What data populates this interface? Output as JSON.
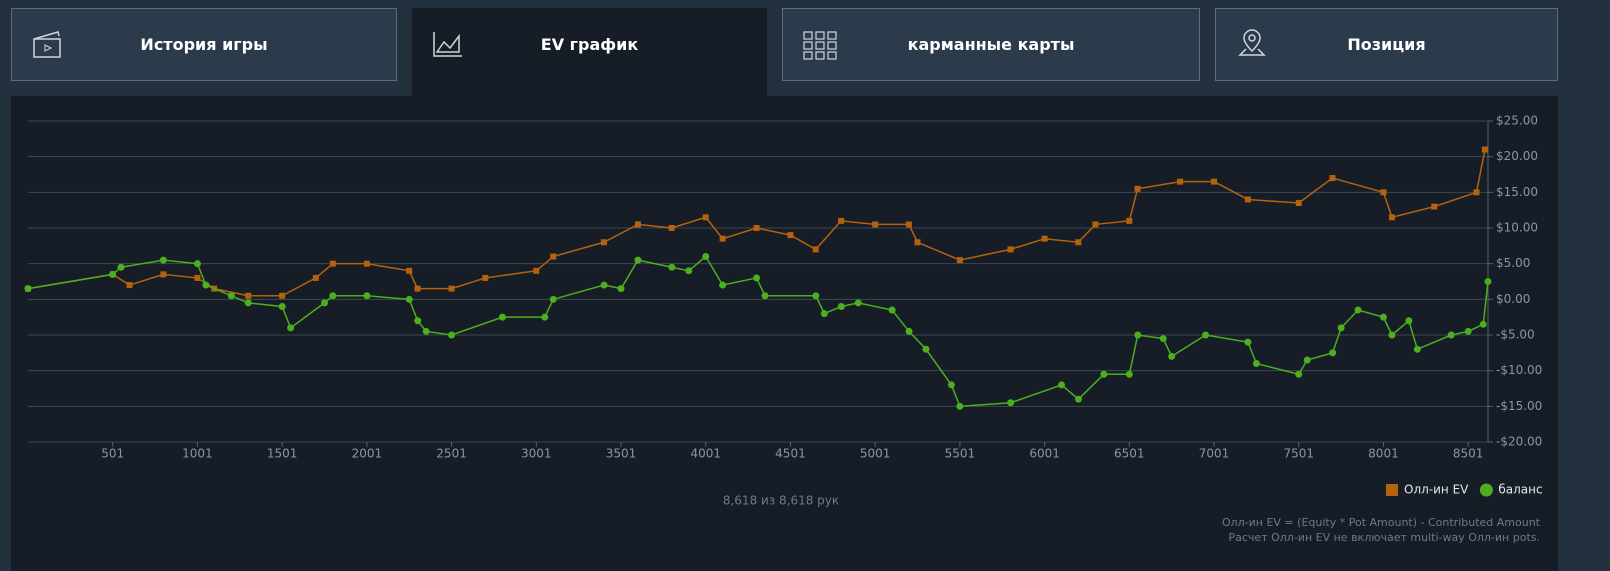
{
  "tabs": [
    {
      "label": "История игры"
    },
    {
      "label": "EV график"
    },
    {
      "label": "карманные карты"
    },
    {
      "label": "Позиция"
    }
  ],
  "chart_data": {
    "type": "line",
    "xlim": [
      1,
      8618
    ],
    "xticks": [
      501,
      1001,
      1501,
      2001,
      2501,
      3001,
      3501,
      4001,
      4501,
      5001,
      5501,
      6001,
      6501,
      7001,
      7501,
      8001,
      8501
    ],
    "ylim": [
      -20,
      25
    ],
    "yticks": [
      {
        "value": 25,
        "label": "$25.00"
      },
      {
        "value": 20,
        "label": "$20.00"
      },
      {
        "value": 15,
        "label": "$15.00"
      },
      {
        "value": 10,
        "label": "$10.00"
      },
      {
        "value": 5,
        "label": "$5.00"
      },
      {
        "value": 0,
        "label": "$0.00"
      },
      {
        "value": -5,
        "label": "-$5.00"
      },
      {
        "value": -10,
        "label": "-$10.00"
      },
      {
        "value": -15,
        "label": "-$15.00"
      },
      {
        "value": -20,
        "label": "-$20.00"
      }
    ],
    "grid": true,
    "legend": "bottom-right",
    "series": [
      {
        "name": "Олл-ин EV",
        "color": "#b5620f",
        "marker": "square",
        "x": [
          1,
          501,
          600,
          800,
          1001,
          1100,
          1301,
          1501,
          1700,
          1800,
          2001,
          2251,
          2300,
          2501,
          2700,
          3001,
          3101,
          3400,
          3601,
          3800,
          4001,
          4101,
          4301,
          4501,
          4650,
          4800,
          5001,
          5200,
          5251,
          5501,
          5800,
          6001,
          6200,
          6301,
          6501,
          6550,
          6801,
          7001,
          7201,
          7501,
          7700,
          8001,
          8051,
          8301,
          8550,
          8600
        ],
        "values": [
          1.5,
          3.5,
          2,
          3.5,
          3,
          1.5,
          0.5,
          0.5,
          3,
          5,
          5,
          4,
          1.5,
          1.5,
          3,
          4,
          6,
          8,
          10.5,
          10,
          11.5,
          8.5,
          10,
          9,
          7,
          11,
          10.5,
          10.5,
          8,
          5.5,
          7,
          8.5,
          8,
          10.5,
          11,
          15.5,
          16.5,
          16.5,
          14,
          13.5,
          17,
          15,
          11.5,
          13,
          15,
          21
        ]
      },
      {
        "name": "баланс",
        "color": "#4caf1e",
        "marker": "circle",
        "x": [
          1,
          501,
          550,
          800,
          1001,
          1051,
          1201,
          1301,
          1501,
          1551,
          1751,
          1800,
          2001,
          2251,
          2301,
          2351,
          2501,
          2801,
          3051,
          3101,
          3401,
          3501,
          3601,
          3801,
          3901,
          4001,
          4101,
          4301,
          4351,
          4651,
          4701,
          4801,
          4901,
          5101,
          5201,
          5301,
          5451,
          5501,
          5801,
          6101,
          6201,
          6351,
          6501,
          6551,
          6701,
          6751,
          6951,
          7201,
          7251,
          7501,
          7551,
          7701,
          7751,
          7851,
          8001,
          8051,
          8151,
          8201,
          8401,
          8501,
          8590,
          8618
        ],
        "values": [
          1.5,
          3.5,
          4.5,
          5.5,
          5,
          2,
          0.5,
          -0.5,
          -1,
          -4,
          -0.5,
          0.5,
          0.5,
          0,
          -3,
          -4.5,
          -5,
          -2.5,
          -2.5,
          0,
          2,
          1.5,
          5.5,
          4.5,
          4,
          6,
          2,
          3,
          0.5,
          0.5,
          -2,
          -1,
          -0.5,
          -1.5,
          -4.5,
          -7,
          -12,
          -15,
          -14.5,
          -12,
          -14,
          -10.5,
          -10.5,
          -5,
          -5.5,
          -8,
          -5,
          -6,
          -9,
          -10.5,
          -8.5,
          -7.5,
          -4,
          -1.5,
          -2.5,
          -5,
          -3,
          -7,
          -5,
          -4.5,
          -3.5,
          2.5
        ]
      }
    ]
  },
  "footer": {
    "hands": "8,618 из 8,618 рук",
    "notes": [
      "Олл-ин EV = (Equity * Pot Amount) - Contributed Amount",
      "Расчет Олл-ин EV не включает multi-way Олл-ин pots."
    ]
  }
}
